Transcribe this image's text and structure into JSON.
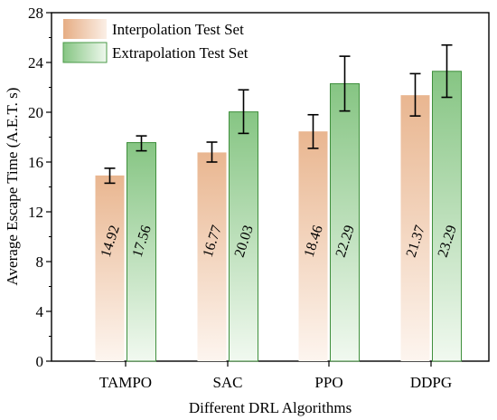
{
  "chart_data": {
    "type": "bar",
    "xlabel": "Different DRL Algorithms",
    "ylabel": "Average Escape Time (A.E.T. s)",
    "ylim": [
      0,
      28
    ],
    "yticks": [
      "0",
      "4",
      "8",
      "12",
      "16",
      "20",
      "24",
      "28"
    ],
    "categories": [
      "TAMPO",
      "SAC",
      "PPO",
      "DDPG"
    ],
    "legend_position": "top-left",
    "series": [
      {
        "name": "Interpolation Test Set",
        "color": "#e8b48a",
        "values": [
          14.92,
          16.77,
          18.46,
          21.37
        ],
        "value_labels": [
          "14.92",
          "16.77",
          "18.46",
          "21.37"
        ],
        "error_low": [
          14.3,
          16.0,
          17.1,
          19.7
        ],
        "error_high": [
          15.5,
          17.6,
          19.8,
          23.1
        ]
      },
      {
        "name": "Extrapolation Test Set",
        "color": "#8fc98a",
        "values": [
          17.56,
          20.03,
          22.29,
          23.29
        ],
        "value_labels": [
          "17.56",
          "20.03",
          "22.29",
          "23.29"
        ],
        "error_low": [
          16.9,
          18.3,
          20.1,
          21.2
        ],
        "error_high": [
          18.1,
          21.8,
          24.5,
          25.4
        ]
      }
    ]
  }
}
